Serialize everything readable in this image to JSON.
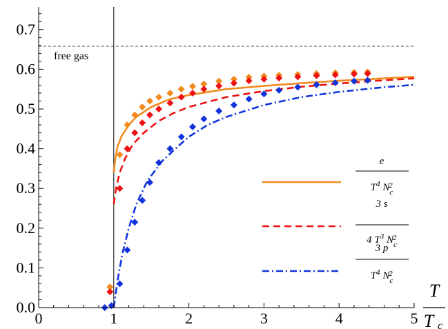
{
  "chart_data": {
    "type": "line",
    "title": "",
    "xlabel": {
      "numerator": "T",
      "denominator": "T",
      "denominator_sub": "c"
    },
    "ylabel": "",
    "xlim": [
      0,
      5
    ],
    "ylim": [
      0,
      0.75
    ],
    "xticks": [
      "0",
      "1",
      "2",
      "3",
      "4",
      "5"
    ],
    "yticks": [
      "0.0",
      "0.1",
      "0.2",
      "0.3",
      "0.4",
      "0.5",
      "0.6",
      "0.7"
    ],
    "xtick_values": [
      0,
      1,
      2,
      3,
      4,
      5
    ],
    "ytick_values": [
      0,
      0.1,
      0.2,
      0.3,
      0.4,
      0.5,
      0.6,
      0.7
    ],
    "grid": false,
    "legend_position": "right",
    "reference_line": {
      "y": 0.658,
      "label": "free gas",
      "style": "dashed",
      "color": "#555555"
    },
    "vertical_line": {
      "x": 1.0,
      "color": "#000000"
    },
    "series": [
      {
        "legend": {
          "numerator": "e",
          "denominator": "T^4 N_c^2"
        },
        "color": "#f28a1e",
        "dash": "solid",
        "curve": {
          "x": [
            1.0,
            1.02,
            1.05,
            1.1,
            1.2,
            1.3,
            1.5,
            1.75,
            2.0,
            2.5,
            3.0,
            3.5,
            4.0,
            4.5,
            5.0
          ],
          "y": [
            0.34,
            0.375,
            0.405,
            0.43,
            0.46,
            0.48,
            0.505,
            0.525,
            0.535,
            0.55,
            0.558,
            0.565,
            0.571,
            0.576,
            0.581
          ]
        },
        "points": {
          "x": [
            0.95,
            1.08,
            1.18,
            1.28,
            1.38,
            1.48,
            1.6,
            1.75,
            1.9,
            2.05,
            2.2,
            2.4,
            2.6,
            2.8,
            3.0,
            3.2,
            3.45,
            3.7,
            3.95,
            4.2,
            4.38
          ],
          "y": [
            0.052,
            0.385,
            0.46,
            0.485,
            0.505,
            0.52,
            0.53,
            0.54,
            0.55,
            0.557,
            0.563,
            0.57,
            0.575,
            0.58,
            0.583,
            0.585,
            0.587,
            0.589,
            0.591,
            0.592,
            0.593
          ]
        }
      },
      {
        "legend": {
          "numerator": "3 s",
          "denominator": "4 T^3 N_c^2"
        },
        "color": "#ee1111",
        "dash": "dashed",
        "curve": {
          "x": [
            1.0,
            1.03,
            1.08,
            1.15,
            1.25,
            1.4,
            1.6,
            1.8,
            2.0,
            2.5,
            3.0,
            3.5,
            4.0,
            4.5,
            5.0
          ],
          "y": [
            0.26,
            0.3,
            0.34,
            0.375,
            0.41,
            0.44,
            0.47,
            0.49,
            0.505,
            0.53,
            0.545,
            0.556,
            0.564,
            0.571,
            0.577
          ]
        },
        "points": {
          "x": [
            0.95,
            1.08,
            1.18,
            1.28,
            1.38,
            1.48,
            1.6,
            1.75,
            1.9,
            2.05,
            2.2,
            2.4,
            2.6,
            2.8,
            3.0,
            3.2,
            3.45,
            3.7,
            3.95,
            4.2,
            4.38
          ],
          "y": [
            0.04,
            0.3,
            0.4,
            0.44,
            0.465,
            0.485,
            0.5,
            0.515,
            0.53,
            0.54,
            0.55,
            0.558,
            0.565,
            0.571,
            0.575,
            0.578,
            0.581,
            0.584,
            0.586,
            0.588,
            0.589
          ]
        }
      },
      {
        "legend": {
          "numerator": "3 p",
          "denominator": "T^4 N_c^2"
        },
        "color": "#1133dd",
        "dash": "dashdot",
        "curve": {
          "x": [
            1.0,
            1.03,
            1.07,
            1.12,
            1.2,
            1.3,
            1.45,
            1.65,
            1.85,
            2.0,
            2.25,
            2.5,
            3.0,
            3.5,
            4.0,
            4.5,
            5.0
          ],
          "y": [
            0.0,
            0.04,
            0.09,
            0.14,
            0.2,
            0.26,
            0.32,
            0.37,
            0.405,
            0.43,
            0.46,
            0.48,
            0.51,
            0.53,
            0.543,
            0.553,
            0.561
          ]
        },
        "points": {
          "x": [
            0.88,
            0.97,
            1.08,
            1.18,
            1.28,
            1.38,
            1.48,
            1.6,
            1.75,
            1.9,
            2.05,
            2.2,
            2.4,
            2.6,
            2.8,
            3.0,
            3.2,
            3.45,
            3.7,
            3.95,
            4.2,
            4.38
          ],
          "y": [
            0.0,
            0.005,
            0.06,
            0.145,
            0.215,
            0.27,
            0.315,
            0.365,
            0.4,
            0.43,
            0.455,
            0.475,
            0.495,
            0.51,
            0.525,
            0.538,
            0.547,
            0.555,
            0.561,
            0.566,
            0.57,
            0.572
          ]
        }
      }
    ]
  }
}
